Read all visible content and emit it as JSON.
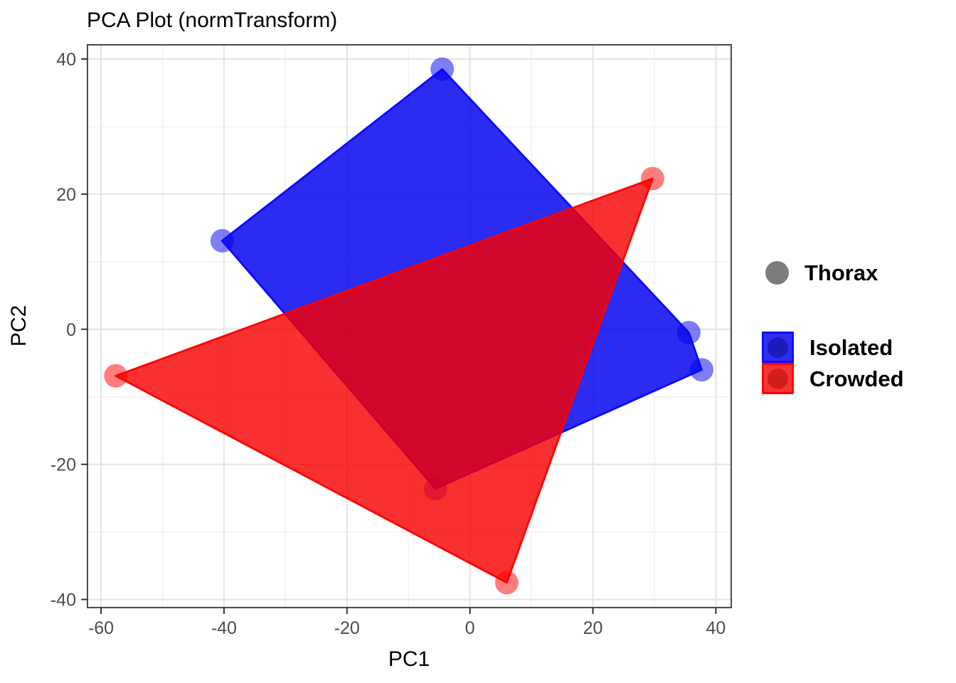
{
  "title": "PCA Plot (normTransform)",
  "legend": {
    "thorax_label": "Thorax",
    "thorax_marker_color": "#7c7c7c",
    "groups": [
      {
        "label": "Isolated",
        "color": "#1010ff"
      },
      {
        "label": "Crowded",
        "color": "#ff0000"
      }
    ]
  },
  "chart_data": {
    "type": "scatter",
    "title": "PCA Plot (normTransform)",
    "xlabel": "PC1",
    "ylabel": "PC2",
    "xlim": [
      -62.2,
      42.5
    ],
    "ylim": [
      -41.2,
      42.1
    ],
    "grid": true,
    "legend_position": "right",
    "x_ticks": {
      "major": [
        -60,
        -40,
        -20,
        0,
        20,
        40
      ],
      "minor": [
        -50,
        -30,
        -10,
        10,
        30
      ]
    },
    "y_ticks": {
      "major": [
        -40,
        -20,
        0,
        20,
        40
      ],
      "minor": [
        -30,
        -10,
        10,
        30
      ]
    },
    "series": [
      {
        "name": "Isolated",
        "point_color": "#2828f0",
        "fill_color": "#0000ef",
        "fill_opacity": 0.83,
        "line_color": "#0a0aff",
        "points": [
          [
            -4.5,
            38.5
          ],
          [
            35.6,
            -0.5
          ],
          [
            37.7,
            -6.0
          ],
          [
            -5.6,
            -23.6
          ],
          [
            -40.3,
            13.1
          ]
        ]
      },
      {
        "name": "Crowded",
        "point_color": "#ff2626",
        "fill_color": "#f80000",
        "fill_opacity": 0.81,
        "line_color": "#ff0000",
        "points": [
          [
            -57.6,
            -6.9
          ],
          [
            29.7,
            22.3
          ],
          [
            6.0,
            -37.5
          ]
        ]
      }
    ]
  }
}
